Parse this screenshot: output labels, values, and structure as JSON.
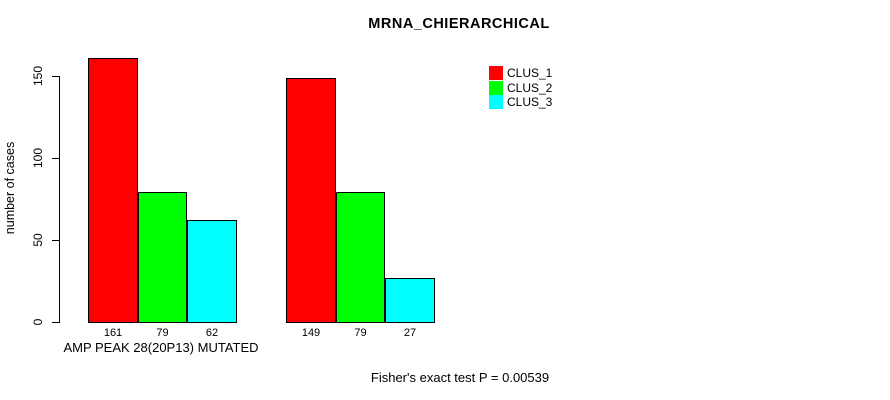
{
  "title": "MRNA_CHIERARCHICAL",
  "y_axis": {
    "label": "number of cases"
  },
  "x_axis": {
    "label": "AMP PEAK 28(20P13) MUTATED"
  },
  "footer": "Fisher's exact test P = 0.00539",
  "legend": {
    "items": [
      {
        "label": "CLUS_1",
        "color": "#ff0000"
      },
      {
        "label": "CLUS_2",
        "color": "#00ff00"
      },
      {
        "label": "CLUS_3",
        "color": "#00ffff"
      }
    ]
  },
  "chart_data": {
    "type": "bar",
    "title": "MRNA_CHIERARCHICAL",
    "ylabel": "number of cases",
    "xlabel": "AMP PEAK 28(20P13) MUTATED",
    "annotation": "Fisher's exact test P = 0.00539",
    "categories": [
      "AMP PEAK 28(20P13) MUTATED",
      ""
    ],
    "series": [
      {
        "name": "CLUS_1",
        "color": "#ff0000",
        "values": [
          161,
          149
        ]
      },
      {
        "name": "CLUS_2",
        "color": "#00ff00",
        "values": [
          79,
          79
        ]
      },
      {
        "name": "CLUS_3",
        "color": "#00ffff",
        "values": [
          62,
          27
        ]
      }
    ],
    "bar_value_labels": [
      [
        161,
        79,
        62
      ],
      [
        149,
        79,
        27
      ]
    ],
    "yticks": [
      0,
      50,
      100,
      150
    ],
    "ylim": [
      0,
      165
    ],
    "grid": false,
    "legend_position": "top-right",
    "bar_border_color": "#000000",
    "background_color": "#ffffff"
  }
}
